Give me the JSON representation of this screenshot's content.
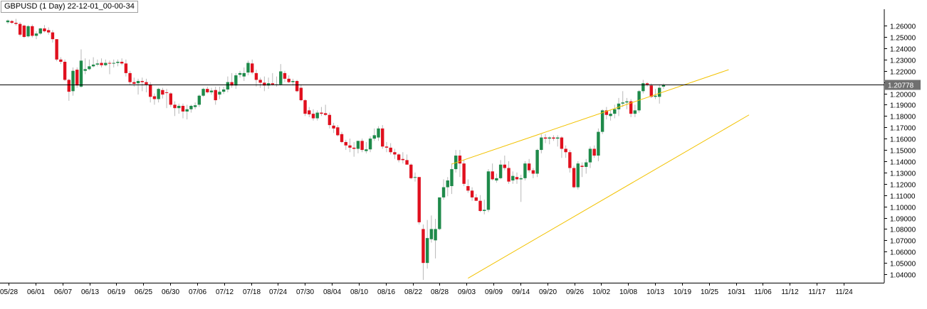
{
  "window": {
    "title": "GBPUSD (1 Day) 22-12-01_00-00-34"
  },
  "colors": {
    "bull": "#1e8a4a",
    "bear": "#e0101e",
    "wick": "#b8b8b8",
    "price_line": "#000000",
    "channel": "#f2c200",
    "grid": "#000000",
    "price_tag_bg": "#707070",
    "price_tag_text": "#ffffff"
  },
  "chart_data": {
    "type": "candlestick",
    "symbol": "GBPUSD",
    "timeframe": "1 Day",
    "ylim": [
      1.0325,
      1.2745
    ],
    "y_ticks": [
      "1.26000",
      "1.25000",
      "1.24000",
      "1.23000",
      "1.22000",
      "1.21000",
      "1.20000",
      "1.19000",
      "1.18000",
      "1.17000",
      "1.16000",
      "1.15000",
      "1.14000",
      "1.13000",
      "1.12000",
      "1.11000",
      "1.10000",
      "1.09000",
      "1.08000",
      "1.07000",
      "1.06000",
      "1.05000",
      "1.04000"
    ],
    "x_ticks": [
      "05/28",
      "06/01",
      "06/07",
      "06/13",
      "06/19",
      "06/25",
      "06/30",
      "07/06",
      "07/12",
      "07/18",
      "07/24",
      "07/30",
      "08/04",
      "08/10",
      "08/16",
      "08/22",
      "08/28",
      "09/03",
      "09/09",
      "09/14",
      "09/20",
      "09/26",
      "10/02",
      "10/08",
      "10/13",
      "10/19",
      "10/25",
      "10/31",
      "11/06",
      "11/12",
      "11/17",
      "11/24"
    ],
    "current_price": "1.20778",
    "current_price_value": 1.20778,
    "channel_lines": [
      {
        "from": {
          "bar": 109,
          "price": 1.1375
        },
        "to": {
          "bar": 177,
          "price": 1.221
        }
      },
      {
        "from": {
          "bar": 113,
          "price": 1.0365
        },
        "to": {
          "bar": 182,
          "price": 1.181
        }
      }
    ],
    "candles": [
      {
        "o": 1.263,
        "h": 1.2655,
        "l": 1.2615,
        "c": 1.2645
      },
      {
        "o": 1.264,
        "h": 1.265,
        "l": 1.2615,
        "c": 1.2625
      },
      {
        "o": 1.2625,
        "h": 1.266,
        "l": 1.26,
        "c": 1.2615
      },
      {
        "o": 1.2615,
        "h": 1.263,
        "l": 1.2505,
        "c": 1.252
      },
      {
        "o": 1.26,
        "h": 1.261,
        "l": 1.249,
        "c": 1.25
      },
      {
        "o": 1.2505,
        "h": 1.2605,
        "l": 1.2495,
        "c": 1.2595
      },
      {
        "o": 1.2595,
        "h": 1.261,
        "l": 1.2495,
        "c": 1.251
      },
      {
        "o": 1.251,
        "h": 1.255,
        "l": 1.248,
        "c": 1.253
      },
      {
        "o": 1.253,
        "h": 1.258,
        "l": 1.252,
        "c": 1.2575
      },
      {
        "o": 1.2575,
        "h": 1.2605,
        "l": 1.254,
        "c": 1.255
      },
      {
        "o": 1.256,
        "h": 1.2585,
        "l": 1.252,
        "c": 1.254
      },
      {
        "o": 1.254,
        "h": 1.256,
        "l": 1.245,
        "c": 1.248
      },
      {
        "o": 1.248,
        "h": 1.248,
        "l": 1.2285,
        "c": 1.23
      },
      {
        "o": 1.23,
        "h": 1.232,
        "l": 1.226,
        "c": 1.228
      },
      {
        "o": 1.228,
        "h": 1.23,
        "l": 1.211,
        "c": 1.212
      },
      {
        "o": 1.212,
        "h": 1.213,
        "l": 1.1935,
        "c": 1.2015
      },
      {
        "o": 1.202,
        "h": 1.223,
        "l": 1.198,
        "c": 1.22
      },
      {
        "o": 1.221,
        "h": 1.223,
        "l": 1.205,
        "c": 1.207
      },
      {
        "o": 1.206,
        "h": 1.239,
        "l": 1.205,
        "c": 1.229
      },
      {
        "o": 1.22,
        "h": 1.231,
        "l": 1.217,
        "c": 1.2215
      },
      {
        "o": 1.2215,
        "h": 1.23,
        "l": 1.2205,
        "c": 1.224
      },
      {
        "o": 1.224,
        "h": 1.232,
        "l": 1.223,
        "c": 1.2255
      },
      {
        "o": 1.2255,
        "h": 1.23,
        "l": 1.224,
        "c": 1.2265
      },
      {
        "o": 1.227,
        "h": 1.231,
        "l": 1.223,
        "c": 1.225
      },
      {
        "o": 1.225,
        "h": 1.23,
        "l": 1.224,
        "c": 1.227
      },
      {
        "o": 1.227,
        "h": 1.229,
        "l": 1.217,
        "c": 1.2265
      },
      {
        "o": 1.2265,
        "h": 1.23,
        "l": 1.223,
        "c": 1.227
      },
      {
        "o": 1.227,
        "h": 1.23,
        "l": 1.224,
        "c": 1.228
      },
      {
        "o": 1.228,
        "h": 1.231,
        "l": 1.225,
        "c": 1.2265
      },
      {
        "o": 1.2265,
        "h": 1.23,
        "l": 1.215,
        "c": 1.218
      },
      {
        "o": 1.218,
        "h": 1.22,
        "l": 1.208,
        "c": 1.21
      },
      {
        "o": 1.21,
        "h": 1.214,
        "l": 1.206,
        "c": 1.2085
      },
      {
        "o": 1.209,
        "h": 1.213,
        "l": 1.199,
        "c": 1.211
      },
      {
        "o": 1.211,
        "h": 1.214,
        "l": 1.202,
        "c": 1.21
      },
      {
        "o": 1.21,
        "h": 1.213,
        "l": 1.201,
        "c": 1.208
      },
      {
        "o": 1.208,
        "h": 1.21,
        "l": 1.192,
        "c": 1.197
      },
      {
        "o": 1.1975,
        "h": 1.2,
        "l": 1.19,
        "c": 1.195
      },
      {
        "o": 1.195,
        "h": 1.205,
        "l": 1.192,
        "c": 1.204
      },
      {
        "o": 1.203,
        "h": 1.205,
        "l": 1.1955,
        "c": 1.199
      },
      {
        "o": 1.201,
        "h": 1.204,
        "l": 1.187,
        "c": 1.2005
      },
      {
        "o": 1.2,
        "h": 1.201,
        "l": 1.188,
        "c": 1.19
      },
      {
        "o": 1.19,
        "h": 1.193,
        "l": 1.18,
        "c": 1.187
      },
      {
        "o": 1.187,
        "h": 1.191,
        "l": 1.182,
        "c": 1.189
      },
      {
        "o": 1.189,
        "h": 1.191,
        "l": 1.178,
        "c": 1.184
      },
      {
        "o": 1.184,
        "h": 1.19,
        "l": 1.177,
        "c": 1.186
      },
      {
        "o": 1.186,
        "h": 1.19,
        "l": 1.183,
        "c": 1.189
      },
      {
        "o": 1.188,
        "h": 1.192,
        "l": 1.186,
        "c": 1.1895
      },
      {
        "o": 1.19,
        "h": 1.199,
        "l": 1.188,
        "c": 1.198
      },
      {
        "o": 1.198,
        "h": 1.205,
        "l": 1.197,
        "c": 1.204
      },
      {
        "o": 1.204,
        "h": 1.206,
        "l": 1.2,
        "c": 1.201
      },
      {
        "o": 1.201,
        "h": 1.205,
        "l": 1.199,
        "c": 1.2025
      },
      {
        "o": 1.203,
        "h": 1.206,
        "l": 1.19,
        "c": 1.194
      },
      {
        "o": 1.199,
        "h": 1.206,
        "l": 1.195,
        "c": 1.2015
      },
      {
        "o": 1.2015,
        "h": 1.206,
        "l": 1.1995,
        "c": 1.2035
      },
      {
        "o": 1.2035,
        "h": 1.215,
        "l": 1.201,
        "c": 1.21
      },
      {
        "o": 1.21,
        "h": 1.218,
        "l": 1.205,
        "c": 1.207
      },
      {
        "o": 1.207,
        "h": 1.218,
        "l": 1.204,
        "c": 1.216
      },
      {
        "o": 1.2165,
        "h": 1.22,
        "l": 1.214,
        "c": 1.218
      },
      {
        "o": 1.215,
        "h": 1.223,
        "l": 1.211,
        "c": 1.218
      },
      {
        "o": 1.2185,
        "h": 1.229,
        "l": 1.216,
        "c": 1.227
      },
      {
        "o": 1.2265,
        "h": 1.23,
        "l": 1.217,
        "c": 1.2185
      },
      {
        "o": 1.218,
        "h": 1.221,
        "l": 1.206,
        "c": 1.212
      },
      {
        "o": 1.212,
        "h": 1.214,
        "l": 1.205,
        "c": 1.2095
      },
      {
        "o": 1.2095,
        "h": 1.215,
        "l": 1.202,
        "c": 1.207
      },
      {
        "o": 1.207,
        "h": 1.214,
        "l": 1.204,
        "c": 1.209
      },
      {
        "o": 1.209,
        "h": 1.218,
        "l": 1.207,
        "c": 1.208
      },
      {
        "o": 1.208,
        "h": 1.215,
        "l": 1.206,
        "c": 1.208
      },
      {
        "o": 1.208,
        "h": 1.226,
        "l": 1.207,
        "c": 1.2195
      },
      {
        "o": 1.218,
        "h": 1.22,
        "l": 1.21,
        "c": 1.213
      },
      {
        "o": 1.213,
        "h": 1.216,
        "l": 1.209,
        "c": 1.21
      },
      {
        "o": 1.21,
        "h": 1.213,
        "l": 1.207,
        "c": 1.211
      },
      {
        "o": 1.211,
        "h": 1.212,
        "l": 1.201,
        "c": 1.202
      },
      {
        "o": 1.205,
        "h": 1.208,
        "l": 1.193,
        "c": 1.194
      },
      {
        "o": 1.194,
        "h": 1.195,
        "l": 1.18,
        "c": 1.182
      },
      {
        "o": 1.185,
        "h": 1.188,
        "l": 1.179,
        "c": 1.1815
      },
      {
        "o": 1.182,
        "h": 1.186,
        "l": 1.176,
        "c": 1.178
      },
      {
        "o": 1.178,
        "h": 1.185,
        "l": 1.176,
        "c": 1.183
      },
      {
        "o": 1.183,
        "h": 1.188,
        "l": 1.18,
        "c": 1.182
      },
      {
        "o": 1.1825,
        "h": 1.19,
        "l": 1.18,
        "c": 1.181
      },
      {
        "o": 1.181,
        "h": 1.183,
        "l": 1.169,
        "c": 1.172
      },
      {
        "o": 1.1715,
        "h": 1.174,
        "l": 1.165,
        "c": 1.169
      },
      {
        "o": 1.17,
        "h": 1.172,
        "l": 1.162,
        "c": 1.163
      },
      {
        "o": 1.164,
        "h": 1.166,
        "l": 1.156,
        "c": 1.157
      },
      {
        "o": 1.157,
        "h": 1.159,
        "l": 1.15,
        "c": 1.154
      },
      {
        "o": 1.154,
        "h": 1.16,
        "l": 1.148,
        "c": 1.152
      },
      {
        "o": 1.152,
        "h": 1.157,
        "l": 1.144,
        "c": 1.151
      },
      {
        "o": 1.151,
        "h": 1.158,
        "l": 1.147,
        "c": 1.158
      },
      {
        "o": 1.158,
        "h": 1.16,
        "l": 1.148,
        "c": 1.15
      },
      {
        "o": 1.149,
        "h": 1.157,
        "l": 1.147,
        "c": 1.1505
      },
      {
        "o": 1.1505,
        "h": 1.162,
        "l": 1.148,
        "c": 1.16
      },
      {
        "o": 1.16,
        "h": 1.169,
        "l": 1.158,
        "c": 1.163
      },
      {
        "o": 1.161,
        "h": 1.171,
        "l": 1.158,
        "c": 1.169
      },
      {
        "o": 1.169,
        "h": 1.172,
        "l": 1.151,
        "c": 1.153
      },
      {
        "o": 1.153,
        "h": 1.157,
        "l": 1.148,
        "c": 1.152
      },
      {
        "o": 1.152,
        "h": 1.156,
        "l": 1.146,
        "c": 1.148
      },
      {
        "o": 1.148,
        "h": 1.151,
        "l": 1.142,
        "c": 1.146
      },
      {
        "o": 1.146,
        "h": 1.147,
        "l": 1.139,
        "c": 1.141
      },
      {
        "o": 1.142,
        "h": 1.148,
        "l": 1.138,
        "c": 1.141
      },
      {
        "o": 1.141,
        "h": 1.146,
        "l": 1.137,
        "c": 1.137
      },
      {
        "o": 1.137,
        "h": 1.138,
        "l": 1.124,
        "c": 1.125
      },
      {
        "o": 1.126,
        "h": 1.13,
        "l": 1.122,
        "c": 1.126
      },
      {
        "o": 1.126,
        "h": 1.126,
        "l": 1.084,
        "c": 1.086
      },
      {
        "o": 1.08,
        "h": 1.084,
        "l": 1.035,
        "c": 1.05
      },
      {
        "o": 1.05,
        "h": 1.088,
        "l": 1.045,
        "c": 1.072
      },
      {
        "o": 1.071,
        "h": 1.092,
        "l": 1.068,
        "c": 1.08
      },
      {
        "o": 1.07,
        "h": 1.089,
        "l": 1.054,
        "c": 1.08
      },
      {
        "o": 1.08,
        "h": 1.107,
        "l": 1.079,
        "c": 1.108
      },
      {
        "o": 1.108,
        "h": 1.124,
        "l": 1.106,
        "c": 1.117
      },
      {
        "o": 1.117,
        "h": 1.126,
        "l": 1.109,
        "c": 1.123
      },
      {
        "o": 1.118,
        "h": 1.138,
        "l": 1.111,
        "c": 1.133
      },
      {
        "o": 1.133,
        "h": 1.15,
        "l": 1.13,
        "c": 1.145
      },
      {
        "o": 1.145,
        "h": 1.15,
        "l": 1.126,
        "c": 1.138
      },
      {
        "o": 1.138,
        "h": 1.141,
        "l": 1.118,
        "c": 1.12
      },
      {
        "o": 1.118,
        "h": 1.124,
        "l": 1.112,
        "c": 1.114
      },
      {
        "o": 1.114,
        "h": 1.117,
        "l": 1.105,
        "c": 1.108
      },
      {
        "o": 1.108,
        "h": 1.111,
        "l": 1.105,
        "c": 1.105
      },
      {
        "o": 1.105,
        "h": 1.11,
        "l": 1.095,
        "c": 1.096
      },
      {
        "o": 1.096,
        "h": 1.106,
        "l": 1.093,
        "c": 1.097
      },
      {
        "o": 1.097,
        "h": 1.133,
        "l": 1.095,
        "c": 1.131
      },
      {
        "o": 1.131,
        "h": 1.138,
        "l": 1.123,
        "c": 1.124
      },
      {
        "o": 1.123,
        "h": 1.129,
        "l": 1.121,
        "c": 1.125
      },
      {
        "o": 1.125,
        "h": 1.141,
        "l": 1.124,
        "c": 1.137
      },
      {
        "o": 1.137,
        "h": 1.145,
        "l": 1.132,
        "c": 1.134
      },
      {
        "o": 1.134,
        "h": 1.14,
        "l": 1.12,
        "c": 1.122
      },
      {
        "o": 1.123,
        "h": 1.131,
        "l": 1.12,
        "c": 1.127
      },
      {
        "o": 1.126,
        "h": 1.13,
        "l": 1.12,
        "c": 1.124
      },
      {
        "o": 1.124,
        "h": 1.128,
        "l": 1.104,
        "c": 1.125
      },
      {
        "o": 1.125,
        "h": 1.14,
        "l": 1.123,
        "c": 1.138
      },
      {
        "o": 1.138,
        "h": 1.142,
        "l": 1.13,
        "c": 1.132
      },
      {
        "o": 1.132,
        "h": 1.134,
        "l": 1.125,
        "c": 1.129
      },
      {
        "o": 1.129,
        "h": 1.151,
        "l": 1.126,
        "c": 1.15
      },
      {
        "o": 1.15,
        "h": 1.164,
        "l": 1.147,
        "c": 1.161
      },
      {
        "o": 1.161,
        "h": 1.164,
        "l": 1.156,
        "c": 1.16
      },
      {
        "o": 1.16,
        "h": 1.162,
        "l": 1.155,
        "c": 1.161
      },
      {
        "o": 1.161,
        "h": 1.163,
        "l": 1.158,
        "c": 1.16
      },
      {
        "o": 1.16,
        "h": 1.163,
        "l": 1.153,
        "c": 1.161
      },
      {
        "o": 1.161,
        "h": 1.162,
        "l": 1.143,
        "c": 1.151
      },
      {
        "o": 1.151,
        "h": 1.154,
        "l": 1.143,
        "c": 1.148
      },
      {
        "o": 1.148,
        "h": 1.15,
        "l": 1.13,
        "c": 1.134
      },
      {
        "o": 1.134,
        "h": 1.136,
        "l": 1.116,
        "c": 1.117
      },
      {
        "o": 1.117,
        "h": 1.14,
        "l": 1.115,
        "c": 1.138
      },
      {
        "o": 1.136,
        "h": 1.139,
        "l": 1.126,
        "c": 1.135
      },
      {
        "o": 1.135,
        "h": 1.142,
        "l": 1.129,
        "c": 1.139
      },
      {
        "o": 1.139,
        "h": 1.153,
        "l": 1.134,
        "c": 1.151
      },
      {
        "o": 1.151,
        "h": 1.154,
        "l": 1.143,
        "c": 1.145
      },
      {
        "o": 1.145,
        "h": 1.169,
        "l": 1.14,
        "c": 1.166
      },
      {
        "o": 1.166,
        "h": 1.186,
        "l": 1.164,
        "c": 1.185
      },
      {
        "o": 1.185,
        "h": 1.188,
        "l": 1.177,
        "c": 1.181
      },
      {
        "o": 1.18,
        "h": 1.185,
        "l": 1.176,
        "c": 1.182
      },
      {
        "o": 1.182,
        "h": 1.19,
        "l": 1.178,
        "c": 1.186
      },
      {
        "o": 1.186,
        "h": 1.196,
        "l": 1.18,
        "c": 1.191
      },
      {
        "o": 1.191,
        "h": 1.202,
        "l": 1.188,
        "c": 1.192
      },
      {
        "o": 1.192,
        "h": 1.196,
        "l": 1.186,
        "c": 1.193
      },
      {
        "o": 1.193,
        "h": 1.195,
        "l": 1.179,
        "c": 1.182
      },
      {
        "o": 1.182,
        "h": 1.19,
        "l": 1.179,
        "c": 1.185
      },
      {
        "o": 1.185,
        "h": 1.203,
        "l": 1.183,
        "c": 1.202
      },
      {
        "o": 1.202,
        "h": 1.212,
        "l": 1.2,
        "c": 1.209
      },
      {
        "o": 1.209,
        "h": 1.21,
        "l": 1.206,
        "c": 1.208
      },
      {
        "o": 1.207,
        "h": 1.209,
        "l": 1.196,
        "c": 1.197
      },
      {
        "o": 1.197,
        "h": 1.204,
        "l": 1.195,
        "c": 1.198
      },
      {
        "o": 1.197,
        "h": 1.208,
        "l": 1.191,
        "c": 1.205
      },
      {
        "o": 1.206,
        "h": 1.209,
        "l": 1.204,
        "c": 1.2078
      }
    ]
  }
}
